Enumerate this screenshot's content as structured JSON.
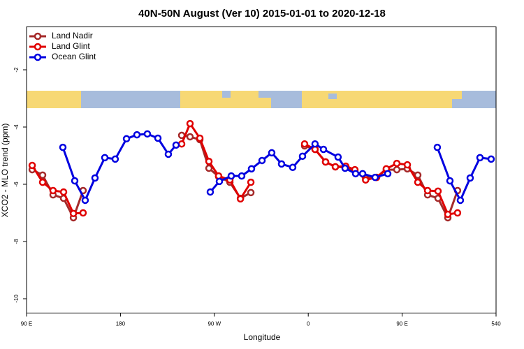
{
  "chart_data": {
    "type": "line",
    "title": "40N-50N August (Ver 10)   2015-01-01 to 2020-12-18",
    "xlabel": "Longitude",
    "ylabel": "XCO2 - MLO trend (ppm)",
    "xlim": [
      90,
      540
    ],
    "xticks": [
      {
        "value": 90,
        "label": "90 E"
      },
      180,
      {
        "value": 270,
        "label": "90 W"
      },
      {
        "value": 360,
        "label": "0"
      },
      {
        "value": 450,
        "label": "90 E"
      },
      540
    ],
    "ylim": [
      -10.5,
      -0.5
    ],
    "yticks": [
      -2,
      -4,
      -6,
      -8,
      -10
    ],
    "legend": "upper left",
    "series": [
      {
        "name": "Land Nadir",
        "color": "#a52a2a",
        "x": [
          95.4,
          105.4,
          115.4,
          125.5,
          134.9,
          144.2,
          null,
          238.7,
          246.7,
          256.1,
          264.8,
          274.1,
          284.9,
          295,
          305,
          null,
          356.5,
          366.5,
          376.6,
          386,
          396,
          404.7,
          415,
          425.5,
          434.8,
          444.9,
          455,
          465,
          474.4,
          484.4,
          493.8,
          503.1
        ],
        "values": [
          -5.49,
          -5.68,
          -6.37,
          -6.49,
          -7.17,
          -6.22,
          null,
          -4.29,
          -4.34,
          -4.44,
          -5.44,
          -5.73,
          -5.93,
          -6.49,
          -6.29,
          null,
          -4.66,
          -4.78,
          -5.22,
          -5.39,
          -5.41,
          -5.51,
          -5.78,
          -5.76,
          -5.49,
          -5.49,
          -5.46,
          -5.68,
          -6.37,
          -6.49,
          -7.17,
          -6.22
        ]
      },
      {
        "name": "Land Glint",
        "color": "#e00000",
        "x": [
          95.4,
          105.4,
          115.4,
          125.5,
          134.9,
          144.2,
          null,
          238.7,
          246.7,
          256.1,
          264.8,
          274.1,
          284.9,
          295,
          305,
          null,
          356.5,
          366.5,
          376.6,
          386,
          396,
          404.7,
          415,
          425.5,
          434.8,
          444.9,
          455,
          465,
          474.4,
          484.4,
          493.8,
          503.1
        ],
        "values": [
          -5.34,
          -5.93,
          -6.22,
          -6.27,
          -7.02,
          -7.0,
          null,
          -4.59,
          -3.88,
          -4.39,
          -5.2,
          -5.71,
          -5.85,
          -6.51,
          -5.93,
          null,
          -4.59,
          -4.78,
          -5.22,
          -5.39,
          -5.37,
          -5.49,
          -5.85,
          -5.76,
          -5.46,
          -5.27,
          -5.32,
          -5.93,
          -6.22,
          -6.24,
          -7.05,
          -7.0
        ]
      },
      {
        "name": "Ocean Glint",
        "color": "#0000e0",
        "x": [
          124.8,
          136.2,
          146.2,
          155.6,
          165,
          175,
          185.8,
          195.8,
          205.8,
          215.9,
          225.9,
          233.3,
          null,
          266.1,
          274.8,
          286.2,
          296.2,
          305.6,
          315.7,
          325,
          334.4,
          345.1,
          354.5,
          366.5,
          374.6,
          388.6,
          395.3,
          405.4,
          412.1,
          424.1,
          436.2,
          null,
          483.7,
          495.8,
          505.8,
          515.2,
          524.6,
          535.3
        ],
        "values": [
          -4.71,
          -5.88,
          -6.56,
          -5.78,
          -5.07,
          -5.12,
          -4.41,
          -4.27,
          -4.24,
          -4.39,
          -4.95,
          -4.63,
          null,
          -6.27,
          -5.9,
          -5.71,
          -5.71,
          -5.46,
          -5.17,
          -4.9,
          -5.29,
          -5.41,
          -5.02,
          -4.59,
          -4.78,
          -5.05,
          -5.44,
          -5.63,
          -5.63,
          -5.76,
          -5.63,
          null,
          -4.71,
          -5.88,
          -6.56,
          -5.78,
          -5.07,
          -5.12
        ]
      }
    ]
  }
}
